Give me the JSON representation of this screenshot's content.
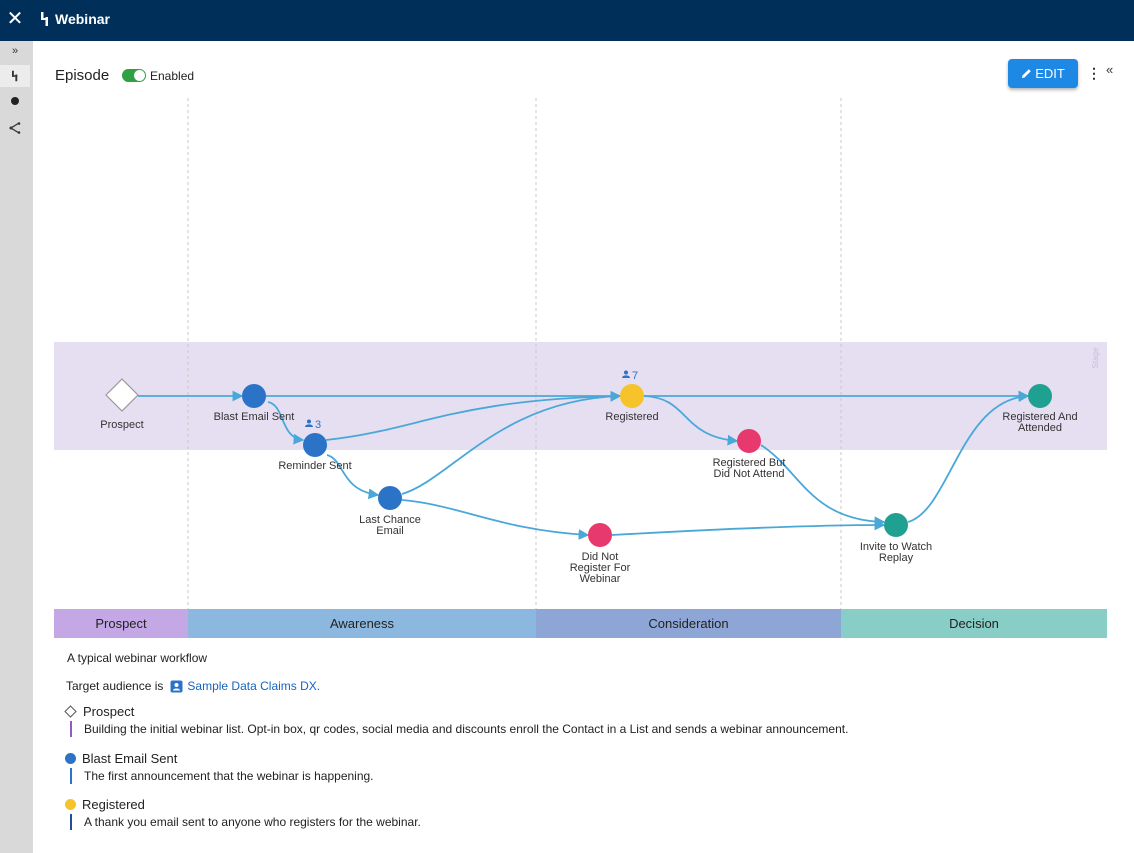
{
  "topbar": {
    "title": "Webinar",
    "close_icon": "close-icon",
    "app_icon": "episode-icon"
  },
  "rail": {
    "expand": "»",
    "items": [
      "episode-icon",
      "dot-icon",
      "share-icon"
    ]
  },
  "header": {
    "label": "Episode",
    "toggle_label": "Enabled",
    "enabled": true,
    "edit_label": "EDIT",
    "more": "⋮",
    "collapse": "«"
  },
  "colors": {
    "blue": "#2b73c7",
    "yellow": "#f6c42a",
    "pink": "#e8396e",
    "teal": "#20a090",
    "edge": "#4aa8d8",
    "band": "#e6dff2"
  },
  "band_label": "Stage",
  "nodes": [
    {
      "id": "prospect",
      "label": "Prospect",
      "shape": "diamond"
    },
    {
      "id": "blast",
      "label": "Blast Email Sent",
      "color": "blue"
    },
    {
      "id": "reminder",
      "label": "Reminder Sent",
      "color": "blue",
      "count": "3"
    },
    {
      "id": "lastchance",
      "label": "Last Chance Email",
      "color": "blue"
    },
    {
      "id": "registered",
      "label": "Registered",
      "color": "yellow",
      "count": "7"
    },
    {
      "id": "didnot",
      "label": "Did Not Register For Webinar",
      "color": "pink"
    },
    {
      "id": "regnot",
      "label": "Registered But Did Not Attend",
      "color": "pink"
    },
    {
      "id": "invite",
      "label": "Invite to Watch Replay",
      "color": "teal"
    },
    {
      "id": "attended",
      "label": "Registered And Attended",
      "color": "teal"
    }
  ],
  "stages": [
    {
      "label": "Prospect",
      "color": "#c4a8e6"
    },
    {
      "label": "Awareness",
      "color": "#8cb8e0"
    },
    {
      "label": "Consideration",
      "color": "#8ea6d6"
    },
    {
      "label": "Decision",
      "color": "#88cec6"
    }
  ],
  "description": "A typical webinar workflow",
  "target": {
    "prefix": "Target audience is",
    "link": "Sample Data Claims DX."
  },
  "legend": [
    {
      "name": "Prospect",
      "marker": "diamond",
      "line_color": "#8e5bc8",
      "text": "Building the initial webinar list. Opt-in box, qr codes, social media and discounts enroll the Contact in a List and sends a webinar announcement."
    },
    {
      "name": "Blast Email Sent",
      "marker": "blue",
      "line_color": "#2b73c7",
      "text": "The first announcement that the webinar is happening."
    },
    {
      "name": "Registered",
      "marker": "yellow",
      "line_color": "#1f4ea0",
      "text": "A thank you email sent to anyone who registers for the webinar."
    }
  ]
}
